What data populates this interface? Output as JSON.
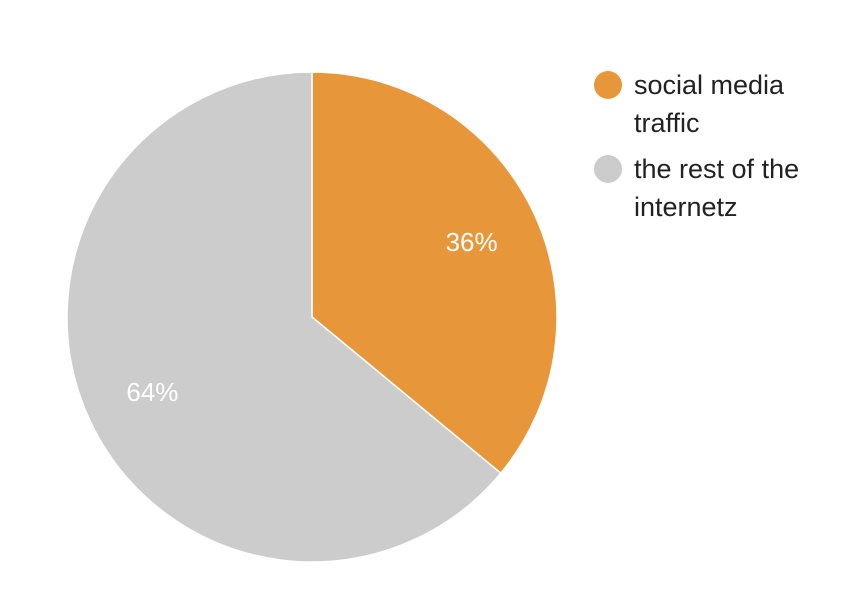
{
  "chart_data": {
    "type": "pie",
    "title": "",
    "legend_position": "right",
    "slices": [
      {
        "label": "social media traffic",
        "legend_lines": [
          "social media",
          "traffic"
        ],
        "value": 36,
        "value_label": "36%",
        "color": "#e8963a"
      },
      {
        "label": "the rest of the internetz",
        "legend_lines": [
          "the rest of the",
          "internetz"
        ],
        "value": 64,
        "value_label": "64%",
        "color": "#cccccc"
      }
    ]
  }
}
